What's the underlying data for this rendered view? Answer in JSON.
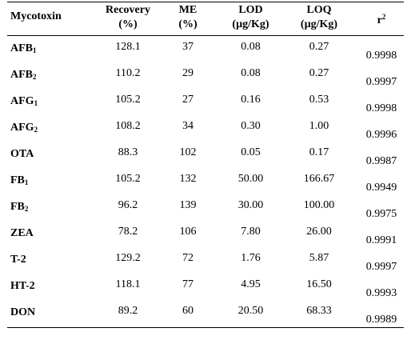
{
  "headers": {
    "mycotoxin": "Mycotoxin",
    "recovery": [
      "Recovery",
      "(%)"
    ],
    "me": [
      "ME",
      "(%)"
    ],
    "lod": [
      "LOD",
      "(µg/Kg)"
    ],
    "loq": [
      "LOQ",
      "(µg/Kg)"
    ],
    "r2": {
      "base": "r",
      "sup": "2"
    }
  },
  "rows": [
    {
      "name": "AFB",
      "sub": "1",
      "recovery": "128.1",
      "me": "37",
      "lod": "0.08",
      "loq": "0.27",
      "r2": "0.9998"
    },
    {
      "name": "AFB",
      "sub": "2",
      "recovery": "110.2",
      "me": "29",
      "lod": "0.08",
      "loq": "0.27",
      "r2": "0.9997"
    },
    {
      "name": "AFG",
      "sub": "1",
      "recovery": "105.2",
      "me": "27",
      "lod": "0.16",
      "loq": "0.53",
      "r2": "0.9998"
    },
    {
      "name": "AFG",
      "sub": "2",
      "recovery": "108.2",
      "me": "34",
      "lod": "0.30",
      "loq": "1.00",
      "r2": "0.9996"
    },
    {
      "name": "OTA",
      "sub": "",
      "recovery": "88.3",
      "me": "102",
      "lod": "0.05",
      "loq": "0.17",
      "r2": "0.9987"
    },
    {
      "name": "FB",
      "sub": "1",
      "recovery": "105.2",
      "me": "132",
      "lod": "50.00",
      "loq": "166.67",
      "r2": "0.9949"
    },
    {
      "name": "FB",
      "sub": "2",
      "recovery": "96.2",
      "me": "139",
      "lod": "30.00",
      "loq": "100.00",
      "r2": "0.9975"
    },
    {
      "name": "ZEA",
      "sub": "",
      "recovery": "78.2",
      "me": "106",
      "lod": "7.80",
      "loq": "26.00",
      "r2": "0.9991"
    },
    {
      "name": "T-2",
      "sub": "",
      "recovery": "129.2",
      "me": "72",
      "lod": "1.76",
      "loq": "5.87",
      "r2": "0.9997"
    },
    {
      "name": "HT-2",
      "sub": "",
      "recovery": "118.1",
      "me": "77",
      "lod": "4.95",
      "loq": "16.50",
      "r2": "0.9993"
    },
    {
      "name": "DON",
      "sub": "",
      "recovery": "89.2",
      "me": "60",
      "lod": "20.50",
      "loq": "68.33",
      "r2": "0.9989"
    }
  ]
}
